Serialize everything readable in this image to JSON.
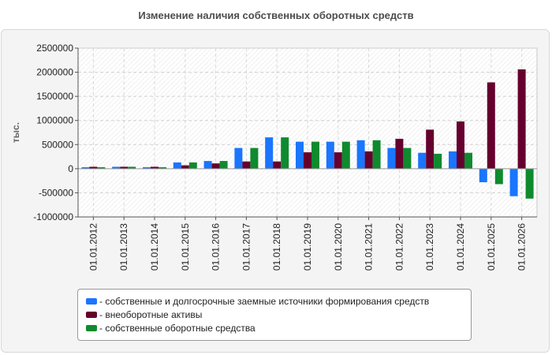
{
  "chart_data": {
    "type": "bar",
    "title": "Изменение наличия собственных оборотных средств",
    "ylabel": "тыс.",
    "xlabel": "",
    "ylim": [
      -1000000,
      2500000
    ],
    "yticks": [
      -1000000,
      -500000,
      0,
      500000,
      1000000,
      1500000,
      2000000,
      2500000
    ],
    "grid": true,
    "legend_position": "bottom",
    "categories": [
      "01.01.2012",
      "01.01.2013",
      "01.01.2014",
      "01.01.2015",
      "01.01.2016",
      "01.01.2017",
      "01.01.2018",
      "01.01.2019",
      "01.01.2020",
      "01.01.2021",
      "01.01.2022",
      "01.01.2023",
      "01.01.2024",
      "01.01.2025",
      "01.01.2026"
    ],
    "series": [
      {
        "name": "- собственные и долгосрочные заемные источники формирования средств",
        "color": "#1a75ff",
        "values": [
          30000,
          40000,
          30000,
          130000,
          160000,
          430000,
          650000,
          560000,
          560000,
          590000,
          430000,
          330000,
          360000,
          -280000,
          -570000
        ]
      },
      {
        "name": "- внеоборотные активы",
        "color": "#66002e",
        "values": [
          40000,
          40000,
          40000,
          70000,
          110000,
          150000,
          150000,
          340000,
          340000,
          360000,
          620000,
          810000,
          980000,
          1790000,
          2060000
        ]
      },
      {
        "name": "- собственные оборотные средства",
        "color": "#0f8a2e",
        "values": [
          30000,
          40000,
          30000,
          130000,
          160000,
          430000,
          650000,
          560000,
          560000,
          590000,
          430000,
          310000,
          330000,
          -320000,
          -620000
        ]
      }
    ]
  }
}
